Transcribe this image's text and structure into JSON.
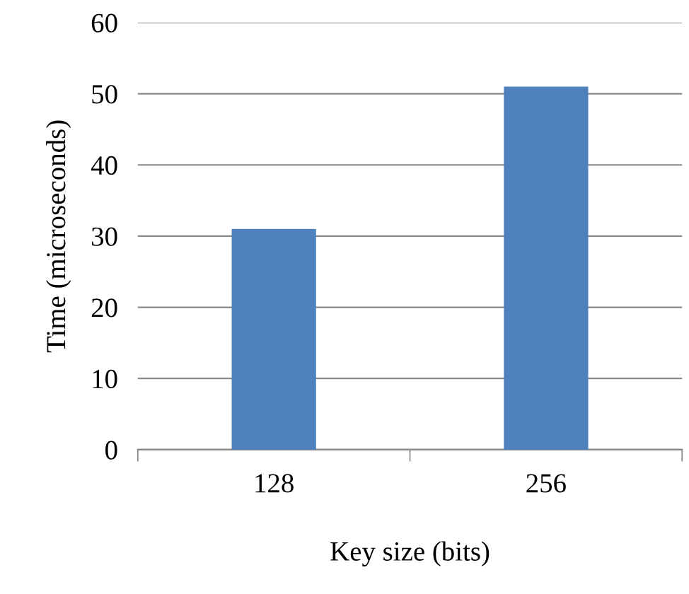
{
  "chart_data": {
    "type": "bar",
    "xlabel": "Key size (bits)",
    "ylabel": "Time (microseconds)",
    "categories": [
      "128",
      "256"
    ],
    "values": [
      31,
      51
    ],
    "color": "#4f81bd",
    "ylim": [
      0,
      60
    ],
    "yticks": [
      0,
      10,
      20,
      30,
      40,
      50,
      60
    ],
    "grid": "y"
  }
}
